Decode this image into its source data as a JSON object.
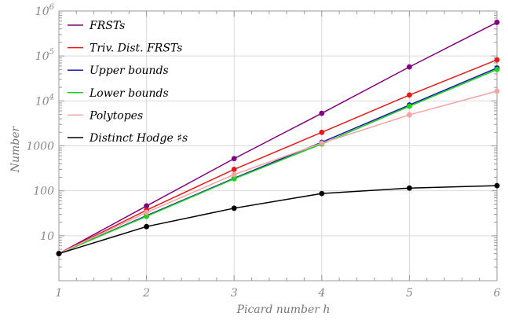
{
  "chart_data": {
    "type": "line",
    "xlabel": "Picard number h",
    "ylabel": "Number",
    "x": [
      1,
      2,
      3,
      4,
      5,
      6
    ],
    "xlim": [
      1,
      6
    ],
    "ylim": [
      1,
      1000000
    ],
    "y_scale": "log",
    "x_tick_labels": [
      "1",
      "2",
      "3",
      "4",
      "5",
      "6"
    ],
    "y_ticks": [
      {
        "value": 10,
        "base": "10",
        "exp": ""
      },
      {
        "value": 100,
        "base": "100",
        "exp": ""
      },
      {
        "value": 1000,
        "base": "1000",
        "exp": ""
      },
      {
        "value": 10000,
        "base": "10",
        "exp": "4"
      },
      {
        "value": 100000,
        "base": "10",
        "exp": "5"
      },
      {
        "value": 1000000,
        "base": "10",
        "exp": "6"
      }
    ],
    "grid": true,
    "legend_position": "top-left",
    "series": [
      {
        "name": "FRSTs",
        "color": "#800080",
        "values": [
          4,
          46,
          520,
          5300,
          57000,
          560000
        ]
      },
      {
        "name": "Triv. Dist. FRSTs",
        "color": "#e51a1a",
        "values": [
          4,
          37,
          300,
          2000,
          13500,
          82000
        ]
      },
      {
        "name": "Upper bounds",
        "color": "#1a1aa6",
        "values": [
          4,
          28,
          190,
          1200,
          8100,
          54000
        ]
      },
      {
        "name": "Lower bounds",
        "color": "#1ad41a",
        "values": [
          4,
          27,
          185,
          1100,
          7600,
          50000
        ]
      },
      {
        "name": "Polytopes",
        "color": "#f5a3a3",
        "values": [
          4,
          33,
          230,
          1150,
          4900,
          16500
        ]
      },
      {
        "name": "Distinct Hodge ♯s",
        "color": "#000000",
        "values": [
          4,
          16,
          41,
          87,
          115,
          130
        ]
      }
    ]
  }
}
